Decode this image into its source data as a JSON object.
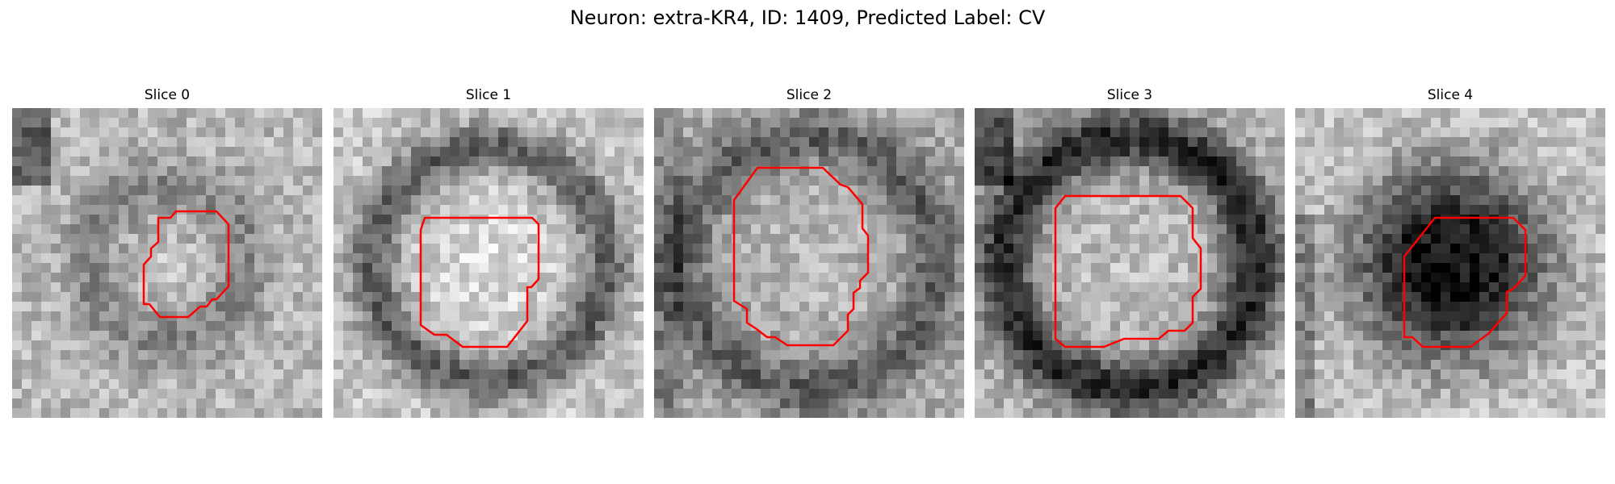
{
  "figure": {
    "title": "Neuron: extra-KR4, ID: 1409, Predicted Label: CV",
    "outline_color": "#ff0000"
  },
  "slices": [
    {
      "title": "Slice 0"
    },
    {
      "title": "Slice 1"
    },
    {
      "title": "Slice 2"
    },
    {
      "title": "Slice 3"
    },
    {
      "title": "Slice 4"
    }
  ]
}
